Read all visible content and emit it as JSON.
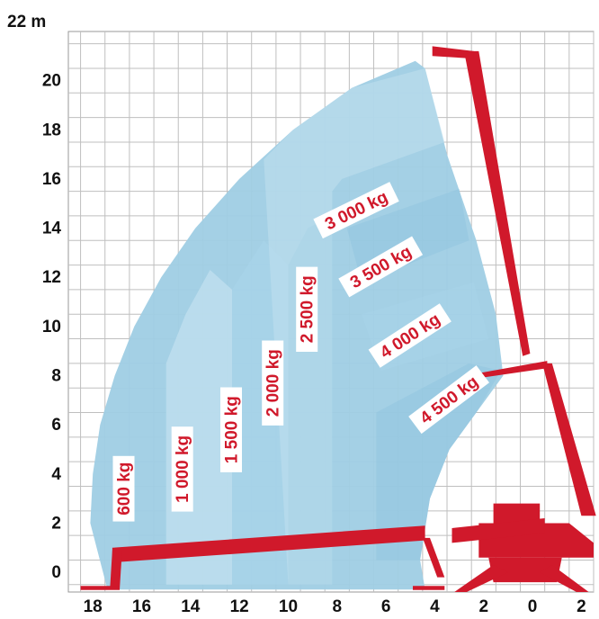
{
  "chart_data": {
    "type": "area",
    "title": "",
    "xlabel": "",
    "ylabel": "",
    "y_top_label": "22 m",
    "x_range": [
      19,
      -2.5
    ],
    "y_range": [
      -0.8,
      22
    ],
    "x_ticks": [
      {
        "value": 18,
        "label": "18"
      },
      {
        "value": 16,
        "label": "16"
      },
      {
        "value": 14,
        "label": "14"
      },
      {
        "value": 12,
        "label": "12"
      },
      {
        "value": 10,
        "label": "10"
      },
      {
        "value": 8,
        "label": "8"
      },
      {
        "value": 6,
        "label": "6"
      },
      {
        "value": 4,
        "label": "4"
      },
      {
        "value": 2,
        "label": "2"
      },
      {
        "value": 0,
        "label": "0"
      },
      {
        "value": -2,
        "label": "2"
      }
    ],
    "y_ticks": [
      {
        "value": 20,
        "label": "20"
      },
      {
        "value": 18,
        "label": "18"
      },
      {
        "value": 16,
        "label": "16"
      },
      {
        "value": 14,
        "label": "14"
      },
      {
        "value": 12,
        "label": "12"
      },
      {
        "value": 10,
        "label": "10"
      },
      {
        "value": 8,
        "label": "8"
      },
      {
        "value": 6,
        "label": "6"
      },
      {
        "value": 4,
        "label": "4"
      },
      {
        "value": 2,
        "label": "2"
      },
      {
        "value": 0,
        "label": "0"
      }
    ],
    "grid": true,
    "zones": [
      {
        "label": "600 kg",
        "label_pos": [
          16.7,
          3.4
        ],
        "label_angle": -90
      },
      {
        "label": "1 000 kg",
        "label_pos": [
          14.3,
          4.2
        ],
        "label_angle": -90
      },
      {
        "label": "1 500 kg",
        "label_pos": [
          12.3,
          5.8
        ],
        "label_angle": -90
      },
      {
        "label": "2 000 kg",
        "label_pos": [
          10.6,
          7.7
        ],
        "label_angle": -90
      },
      {
        "label": "2 500 kg",
        "label_pos": [
          9.2,
          10.7
        ],
        "label_angle": -90
      },
      {
        "label": "3 000 kg",
        "label_pos": [
          7.2,
          14.7
        ],
        "label_angle": -26
      },
      {
        "label": "3 500 kg",
        "label_pos": [
          6.2,
          12.4
        ],
        "label_angle": -30
      },
      {
        "label": "4 000 kg",
        "label_pos": [
          5.0,
          9.6
        ],
        "label_angle": -33
      },
      {
        "label": "4 500 kg",
        "label_pos": [
          3.4,
          7.0
        ],
        "label_angle": -37
      }
    ],
    "colors": {
      "zone_outer": "#9fcde4",
      "zone_light": "#c1e0ef",
      "zone_mid": "#a8d4ea",
      "zone_dark": "#8ec3de",
      "machine": "#d0192b",
      "grid": "#bfbfbf",
      "axis_text": "#111111",
      "label_bg": "#ffffff",
      "label_text": "#d0192b"
    }
  }
}
